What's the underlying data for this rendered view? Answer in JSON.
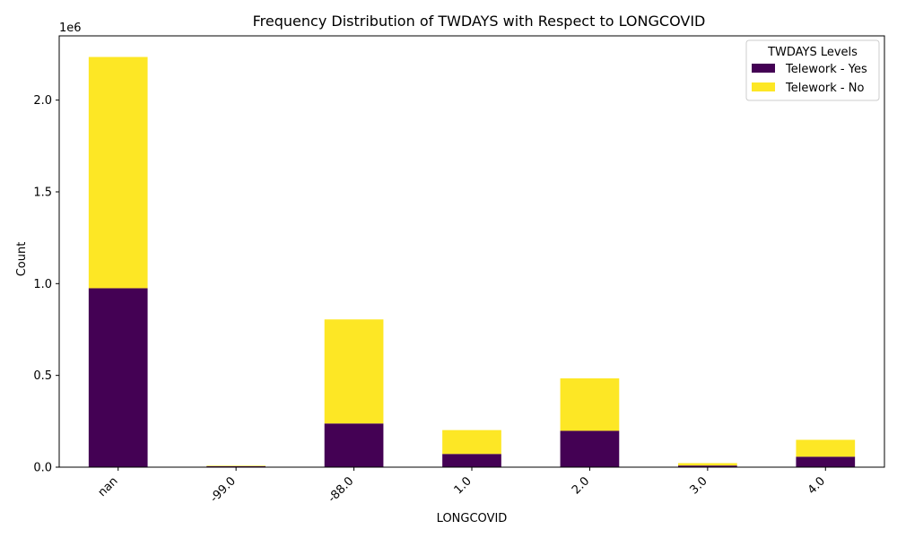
{
  "chart_data": {
    "type": "bar",
    "stacked": true,
    "title": "Frequency Distribution of TWDAYS with Respect to LONGCOVID",
    "xlabel": "LONGCOVID",
    "ylabel": "Count",
    "y_offset_label": "1e6",
    "ylim": [
      0,
      2350000
    ],
    "yticks": [
      0,
      500000,
      1000000,
      1500000,
      2000000
    ],
    "ytick_labels": [
      "0.0",
      "0.5",
      "1.0",
      "1.5",
      "2.0"
    ],
    "categories": [
      "nan",
      "-99.0",
      "-88.0",
      "1.0",
      "2.0",
      "3.0",
      "4.0"
    ],
    "legend_title": "TWDAYS Levels",
    "legend_position": "top-right",
    "series": [
      {
        "name": "Telework - Yes",
        "color": "#440154",
        "values": [
          975000,
          5000,
          238000,
          72000,
          198000,
          9000,
          57000
        ]
      },
      {
        "name": "Telework - No",
        "color": "#fde725",
        "values": [
          1260000,
          3000,
          567000,
          130000,
          286000,
          13000,
          92000
        ]
      }
    ]
  }
}
